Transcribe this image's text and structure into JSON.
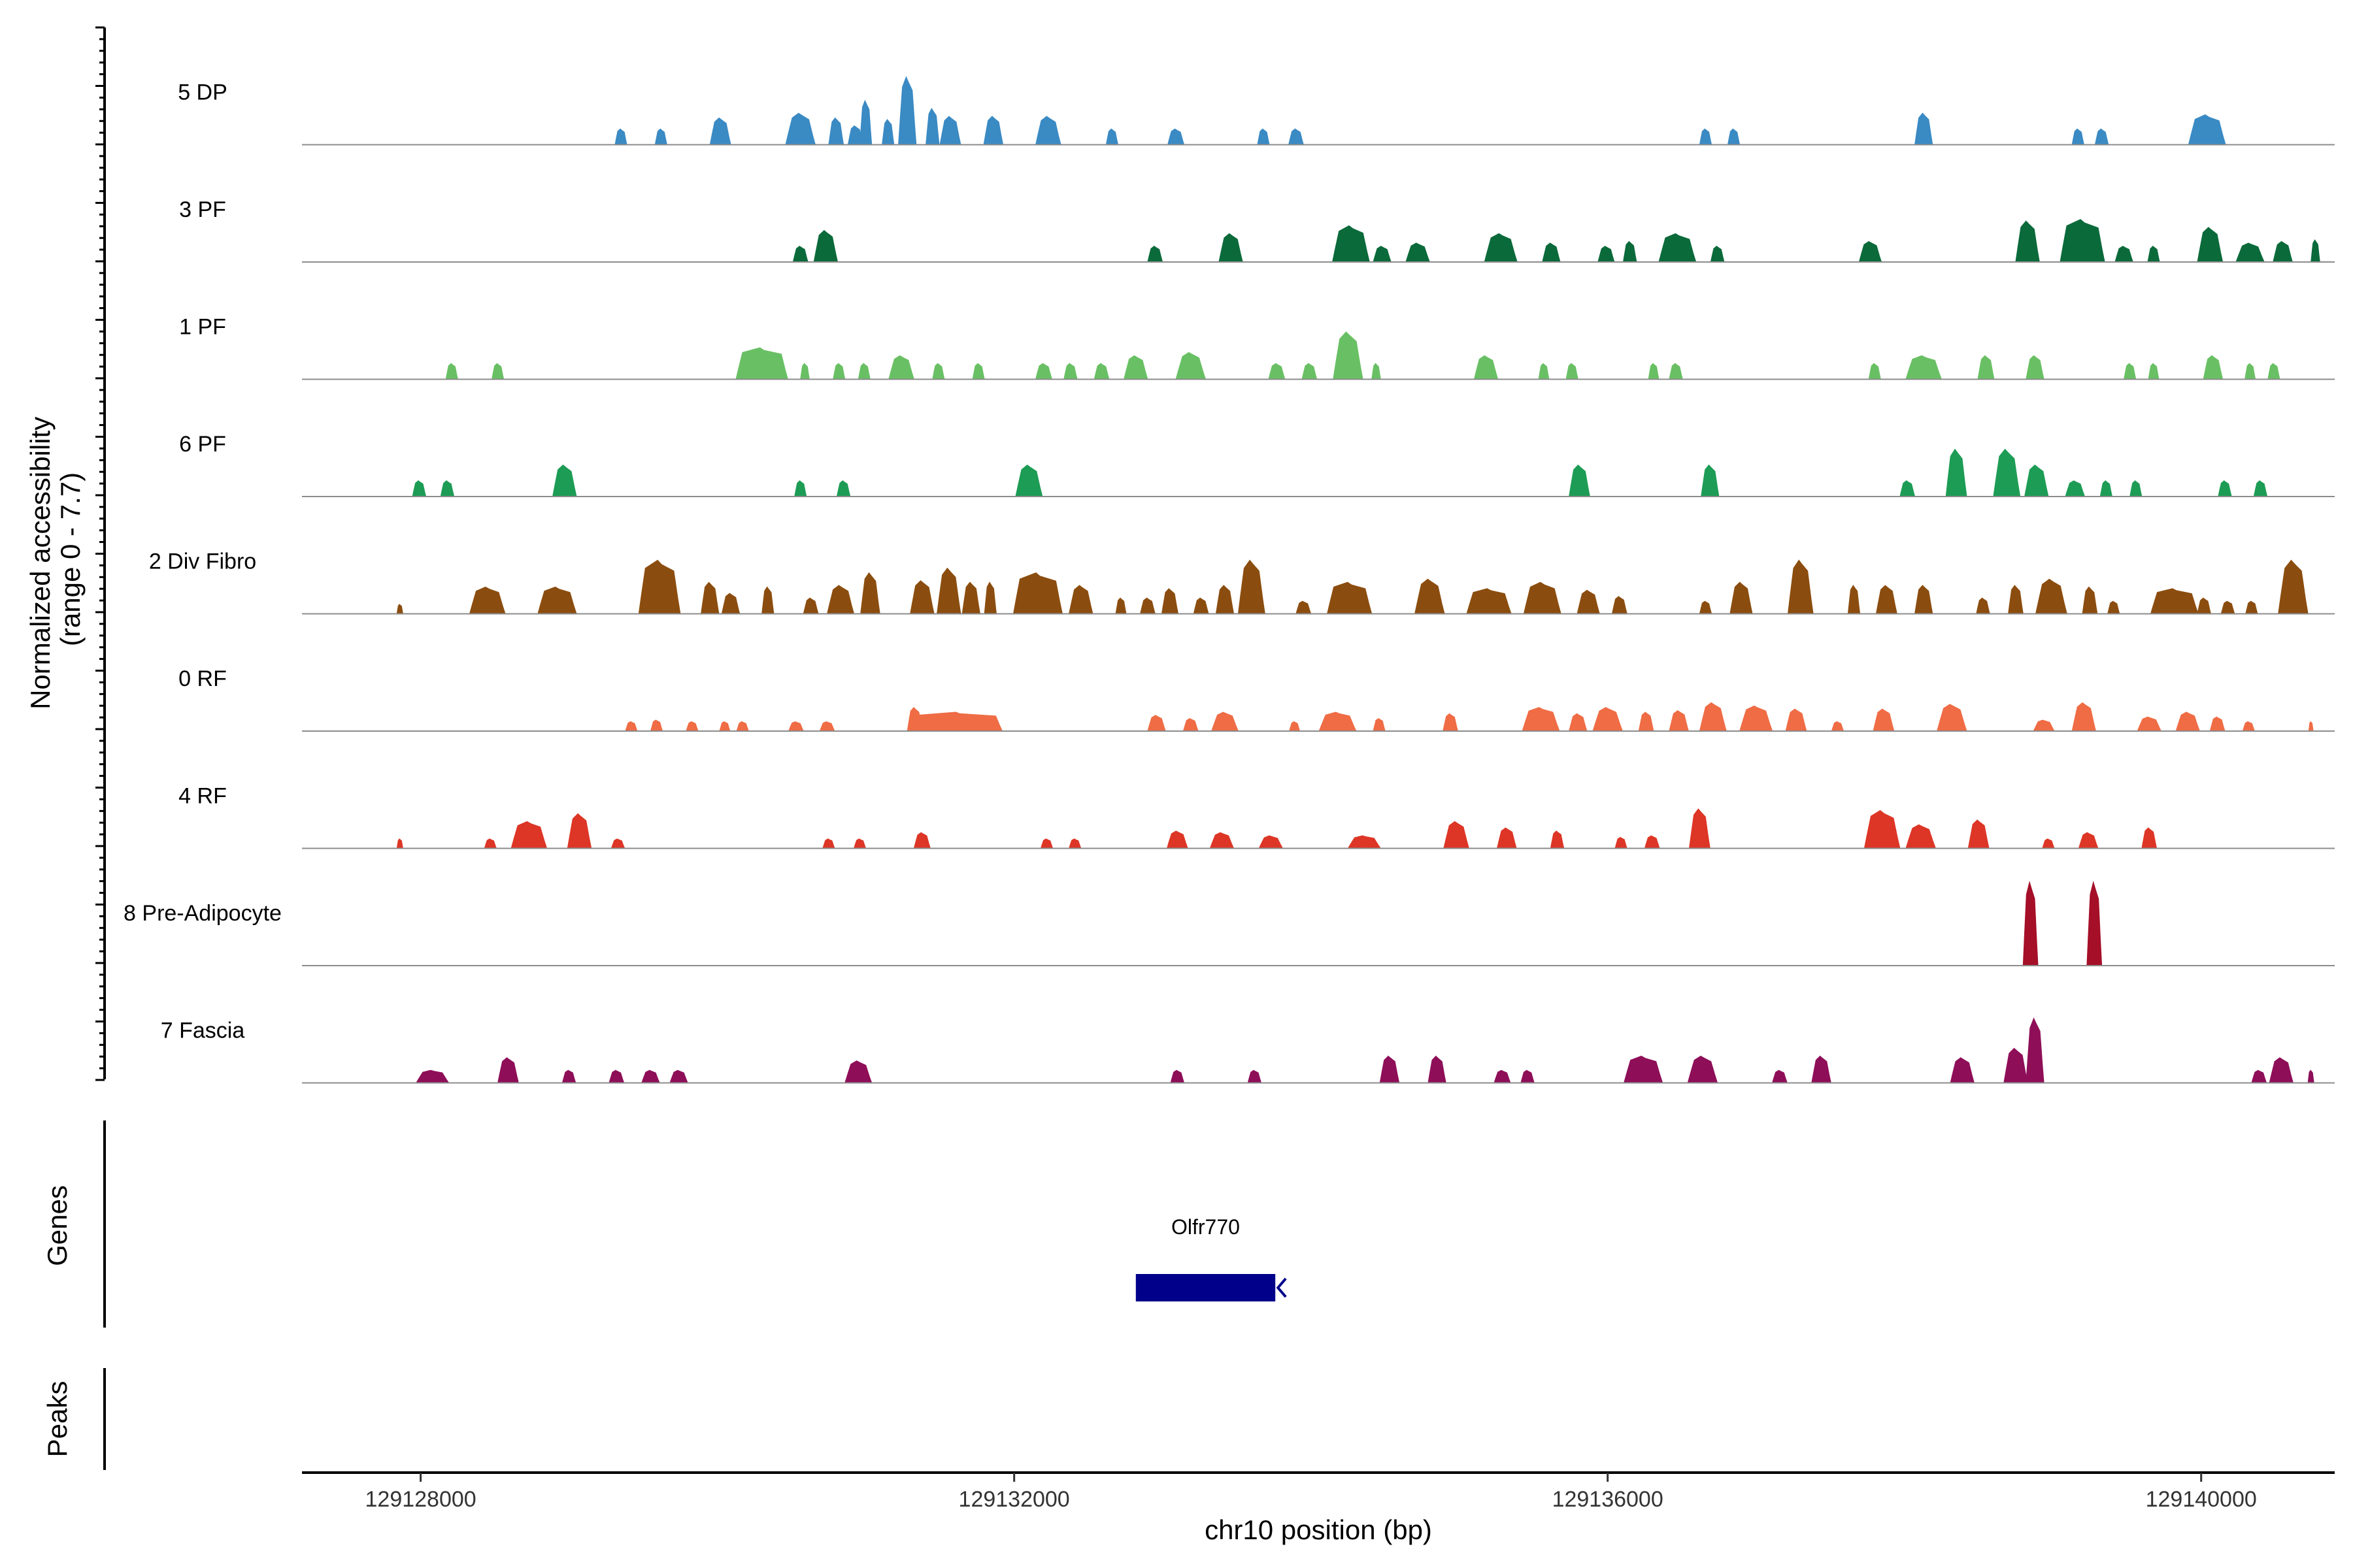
{
  "chart_data": {
    "type": "area",
    "title": "",
    "xlabel": "chr10 position (bp)",
    "ylabel": "Normalized accessibility (range 0 - 7.7)",
    "ylabel_lines": [
      "Normalized accessibility",
      "(range 0 - 7.7)"
    ],
    "ylim": [
      0,
      7.7
    ],
    "xlim": [
      127200,
      140900
    ],
    "x_ticks": [
      128000,
      132000,
      136000,
      140000
    ],
    "x_tick_labels": [
      "129128000",
      "129132000",
      "129136000",
      "129140000"
    ],
    "tracks": [
      {
        "name": "5 DP",
        "color": "#3a8ac4",
        "peaks": [
          [
            129350,
            80,
            1.0
          ],
          [
            129620,
            80,
            1.0
          ],
          [
            130020,
            140,
            1.7
          ],
          [
            130560,
            200,
            2.0
          ],
          [
            130800,
            100,
            1.7
          ],
          [
            130930,
            100,
            1.2
          ],
          [
            131000,
            80,
            2.8
          ],
          [
            131150,
            80,
            1.6
          ],
          [
            131280,
            120,
            4.3
          ],
          [
            131450,
            90,
            2.3
          ],
          [
            131570,
            140,
            1.8
          ],
          [
            131860,
            130,
            1.8
          ],
          [
            132230,
            170,
            1.8
          ],
          [
            132660,
            80,
            1.0
          ],
          [
            133090,
            110,
            1.0
          ],
          [
            133680,
            80,
            1.0
          ],
          [
            133900,
            100,
            1.0
          ],
          [
            136660,
            80,
            1.0
          ],
          [
            136850,
            80,
            1.0
          ],
          [
            138130,
            120,
            2.0
          ],
          [
            139170,
            80,
            1.0
          ],
          [
            139330,
            90,
            1.0
          ],
          [
            140040,
            250,
            1.9
          ]
        ]
      },
      {
        "name": "3 PF",
        "color": "#0b6a3a",
        "peaks": [
          [
            130560,
            100,
            1.0
          ],
          [
            130730,
            160,
            2.0
          ],
          [
            132950,
            100,
            1.0
          ],
          [
            133460,
            160,
            1.8
          ],
          [
            134270,
            250,
            2.3
          ],
          [
            134480,
            120,
            1.0
          ],
          [
            134720,
            160,
            1.2
          ],
          [
            135280,
            220,
            1.8
          ],
          [
            135620,
            120,
            1.2
          ],
          [
            135990,
            110,
            1.0
          ],
          [
            136150,
            90,
            1.3
          ],
          [
            136470,
            250,
            1.8
          ],
          [
            136740,
            90,
            1.0
          ],
          [
            137770,
            150,
            1.3
          ],
          [
            138830,
            160,
            2.6
          ],
          [
            139200,
            300,
            2.7
          ],
          [
            139480,
            120,
            1.0
          ],
          [
            139680,
            80,
            1.0
          ],
          [
            140060,
            170,
            2.2
          ],
          [
            140330,
            190,
            1.2
          ],
          [
            140550,
            130,
            1.3
          ],
          [
            140770,
            60,
            1.4
          ]
        ]
      },
      {
        "name": "1 PF",
        "color": "#69c064",
        "peaks": [
          [
            128210,
            80,
            1.0
          ],
          [
            128520,
            80,
            1.0
          ],
          [
            130300,
            350,
            2.0
          ],
          [
            130590,
            60,
            1.0
          ],
          [
            130820,
            80,
            1.0
          ],
          [
            130990,
            80,
            1.0
          ],
          [
            131240,
            170,
            1.5
          ],
          [
            131490,
            80,
            1.0
          ],
          [
            131760,
            80,
            1.0
          ],
          [
            132200,
            110,
            1.0
          ],
          [
            132380,
            90,
            1.0
          ],
          [
            132590,
            100,
            1.0
          ],
          [
            132820,
            160,
            1.5
          ],
          [
            133190,
            200,
            1.7
          ],
          [
            133770,
            110,
            1.0
          ],
          [
            133990,
            100,
            1.0
          ],
          [
            134250,
            200,
            3.0
          ],
          [
            134440,
            60,
            1.0
          ],
          [
            135180,
            160,
            1.5
          ],
          [
            135570,
            70,
            1.0
          ],
          [
            135760,
            80,
            1.0
          ],
          [
            136310,
            70,
            1.0
          ],
          [
            136460,
            90,
            1.0
          ],
          [
            137800,
            80,
            1.0
          ],
          [
            138130,
            240,
            1.5
          ],
          [
            138550,
            110,
            1.5
          ],
          [
            138880,
            120,
            1.5
          ],
          [
            139520,
            80,
            1.0
          ],
          [
            139680,
            70,
            1.0
          ],
          [
            140080,
            130,
            1.5
          ],
          [
            140330,
            70,
            1.0
          ],
          [
            140490,
            80,
            1.0
          ]
        ]
      },
      {
        "name": "6 PF",
        "color": "#1d9c55",
        "peaks": [
          [
            127990,
            90,
            1.0
          ],
          [
            128180,
            90,
            1.0
          ],
          [
            128970,
            160,
            2.0
          ],
          [
            130560,
            80,
            1.0
          ],
          [
            130850,
            90,
            1.0
          ],
          [
            132100,
            180,
            2.0
          ],
          [
            135810,
            140,
            2.0
          ],
          [
            136690,
            120,
            2.0
          ],
          [
            138020,
            100,
            1.0
          ],
          [
            138350,
            140,
            3.0
          ],
          [
            138690,
            180,
            3.0
          ],
          [
            138890,
            160,
            2.0
          ],
          [
            139150,
            130,
            1.0
          ],
          [
            139360,
            80,
            1.0
          ],
          [
            139560,
            80,
            1.0
          ],
          [
            140160,
            90,
            1.0
          ],
          [
            140400,
            90,
            1.0
          ]
        ]
      },
      {
        "name": "2 Div Fibro",
        "color": "#8b4d0f",
        "peaks": [
          [
            127860,
            40,
            0.6
          ],
          [
            128450,
            240,
            1.7
          ],
          [
            128920,
            260,
            1.7
          ],
          [
            129610,
            280,
            3.4
          ],
          [
            129950,
            120,
            2.0
          ],
          [
            130090,
            120,
            1.3
          ],
          [
            130340,
            80,
            1.7
          ],
          [
            130630,
            100,
            1.0
          ],
          [
            130830,
            180,
            1.8
          ],
          [
            131030,
            130,
            2.6
          ],
          [
            131380,
            160,
            2.1
          ],
          [
            131560,
            160,
            2.9
          ],
          [
            131710,
            120,
            2.0
          ],
          [
            131840,
            80,
            2.0
          ],
          [
            132160,
            330,
            2.6
          ],
          [
            132450,
            160,
            1.8
          ],
          [
            132720,
            70,
            1.0
          ],
          [
            132900,
            100,
            1.0
          ],
          [
            133050,
            110,
            1.6
          ],
          [
            133260,
            100,
            1.0
          ],
          [
            133420,
            120,
            1.8
          ],
          [
            133600,
            180,
            3.4
          ],
          [
            133950,
            100,
            0.8
          ],
          [
            134260,
            300,
            2.0
          ],
          [
            134800,
            200,
            2.2
          ],
          [
            135200,
            300,
            1.6
          ],
          [
            135560,
            250,
            2.0
          ],
          [
            135870,
            150,
            1.5
          ],
          [
            136080,
            100,
            1.1
          ],
          [
            136660,
            80,
            0.8
          ],
          [
            136900,
            150,
            2.0
          ],
          [
            137300,
            170,
            3.4
          ],
          [
            137660,
            80,
            1.8
          ],
          [
            137880,
            140,
            1.8
          ],
          [
            138130,
            120,
            1.8
          ],
          [
            138530,
            90,
            1.0
          ],
          [
            138750,
            100,
            1.8
          ],
          [
            138990,
            210,
            2.2
          ],
          [
            139250,
            100,
            1.7
          ],
          [
            139410,
            80,
            0.8
          ],
          [
            139820,
            320,
            1.6
          ],
          [
            140020,
            90,
            1.0
          ],
          [
            140180,
            90,
            0.8
          ],
          [
            140340,
            80,
            0.8
          ],
          [
            140620,
            200,
            3.4
          ]
        ]
      },
      {
        "name": "0 RF",
        "color": "#ef6c45",
        "peaks": [
          [
            129420,
            80,
            0.6
          ],
          [
            129590,
            80,
            0.7
          ],
          [
            129830,
            80,
            0.6
          ],
          [
            130050,
            70,
            0.6
          ],
          [
            130170,
            80,
            0.6
          ],
          [
            130530,
            100,
            0.6
          ],
          [
            130740,
            100,
            0.6
          ],
          [
            131330,
            100,
            1.5
          ],
          [
            131620,
            600,
            1.2
          ],
          [
            132960,
            120,
            1.0
          ],
          [
            133190,
            100,
            0.8
          ],
          [
            133420,
            180,
            1.2
          ],
          [
            133890,
            70,
            0.6
          ],
          [
            134180,
            250,
            1.2
          ],
          [
            134460,
            80,
            0.8
          ],
          [
            134940,
            100,
            1.1
          ],
          [
            135550,
            250,
            1.5
          ],
          [
            135800,
            120,
            1.1
          ],
          [
            136000,
            200,
            1.5
          ],
          [
            136260,
            100,
            1.2
          ],
          [
            136480,
            130,
            1.3
          ],
          [
            136710,
            180,
            1.8
          ],
          [
            137000,
            220,
            1.6
          ],
          [
            137270,
            140,
            1.4
          ],
          [
            137550,
            80,
            0.6
          ],
          [
            137860,
            140,
            1.4
          ],
          [
            138320,
            200,
            1.7
          ],
          [
            138940,
            140,
            0.7
          ],
          [
            139210,
            160,
            1.8
          ],
          [
            139650,
            160,
            0.9
          ],
          [
            139910,
            160,
            1.2
          ],
          [
            140110,
            100,
            0.9
          ],
          [
            140320,
            80,
            0.6
          ],
          [
            140740,
            30,
            0.6
          ]
        ]
      },
      {
        "name": "4 RF",
        "color": "#dd3626",
        "peaks": [
          [
            127860,
            40,
            0.6
          ],
          [
            128470,
            80,
            0.6
          ],
          [
            128730,
            240,
            1.7
          ],
          [
            129070,
            160,
            2.2
          ],
          [
            129330,
            90,
            0.6
          ],
          [
            130750,
            80,
            0.6
          ],
          [
            130960,
            80,
            0.6
          ],
          [
            131380,
            110,
            1.0
          ],
          [
            132220,
            80,
            0.6
          ],
          [
            132410,
            80,
            0.6
          ],
          [
            133100,
            140,
            1.1
          ],
          [
            133400,
            160,
            1.0
          ],
          [
            133730,
            160,
            0.8
          ],
          [
            134360,
            220,
            0.8
          ],
          [
            134980,
            170,
            1.7
          ],
          [
            135320,
            130,
            1.3
          ],
          [
            135660,
            90,
            1.1
          ],
          [
            136090,
            80,
            0.7
          ],
          [
            136300,
            100,
            0.8
          ],
          [
            136620,
            140,
            2.5
          ],
          [
            137850,
            240,
            2.4
          ],
          [
            138110,
            200,
            1.5
          ],
          [
            138500,
            140,
            1.8
          ],
          [
            138970,
            80,
            0.6
          ],
          [
            139240,
            130,
            1.0
          ],
          [
            139650,
            100,
            1.3
          ]
        ]
      },
      {
        "name": "8 Pre-Adipocyte",
        "color": "#a50f28",
        "peaks": [
          [
            138850,
            100,
            5.3
          ],
          [
            139280,
            100,
            5.3
          ]
        ]
      },
      {
        "name": "7 Fascia",
        "color": "#8e0e58",
        "peaks": [
          [
            128080,
            220,
            0.8
          ],
          [
            128590,
            140,
            1.6
          ],
          [
            129000,
            90,
            0.8
          ],
          [
            129320,
            100,
            0.8
          ],
          [
            129550,
            120,
            0.8
          ],
          [
            129740,
            120,
            0.8
          ],
          [
            130950,
            180,
            1.4
          ],
          [
            133100,
            90,
            0.8
          ],
          [
            133620,
            90,
            0.8
          ],
          [
            134530,
            130,
            1.7
          ],
          [
            134850,
            120,
            1.7
          ],
          [
            135290,
            110,
            0.8
          ],
          [
            135460,
            90,
            0.8
          ],
          [
            136240,
            260,
            1.7
          ],
          [
            136640,
            200,
            1.7
          ],
          [
            137160,
            100,
            0.8
          ],
          [
            137440,
            130,
            1.7
          ],
          [
            138390,
            160,
            1.6
          ],
          [
            138750,
            160,
            2.2
          ],
          [
            138880,
            120,
            4.1
          ],
          [
            140390,
            100,
            0.8
          ],
          [
            140540,
            160,
            1.6
          ],
          [
            140740,
            40,
            0.8
          ]
        ]
      }
    ],
    "genes_track": {
      "label": "Genes",
      "genes": [
        {
          "name": "Olfr770",
          "start": 132820,
          "end": 133760,
          "strand": "-"
        }
      ]
    },
    "peaks_track": {
      "label": "Peaks",
      "peaks": []
    }
  }
}
